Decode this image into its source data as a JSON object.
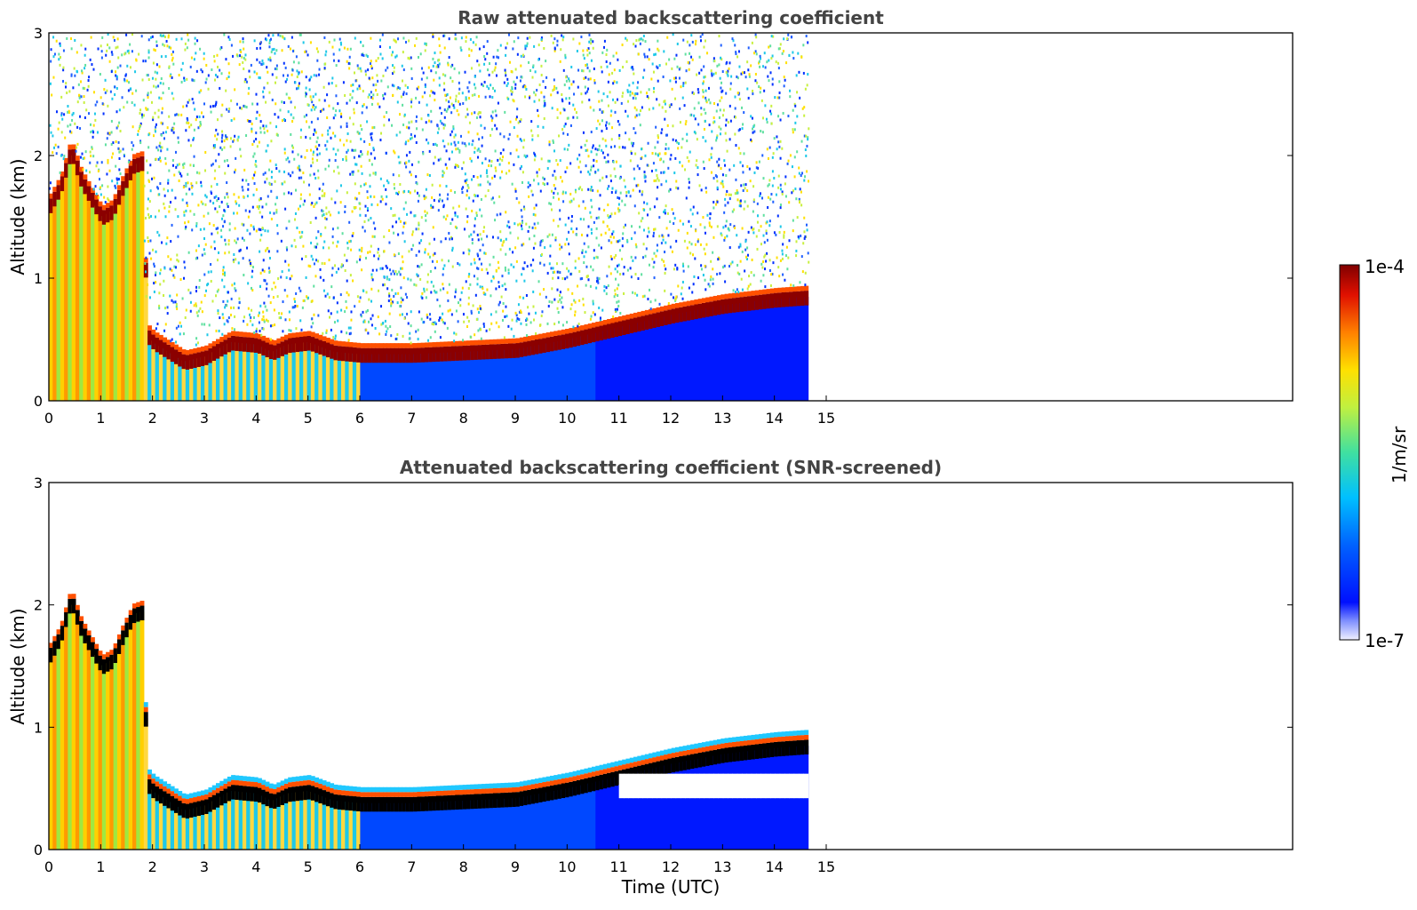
{
  "chart_data": [
    {
      "type": "heatmap",
      "title": "Raw attenuated backscattering coefficient",
      "xlabel": "",
      "ylabel": "Altitude (km)",
      "xlim": [
        0,
        24
      ],
      "ylim": [
        0,
        3
      ],
      "x_ticks": [
        "0",
        "1",
        "2",
        "3",
        "4",
        "5",
        "6",
        "7",
        "8",
        "9",
        "10",
        "11",
        "12",
        "13",
        "14",
        "15"
      ],
      "y_ticks": [
        "0",
        "1",
        "2",
        "3"
      ],
      "data_end_time": 14.65,
      "grid": false,
      "layer_top": [
        [
          0.0,
          1.6
        ],
        [
          0.2,
          1.75
        ],
        [
          0.4,
          2.05
        ],
        [
          0.6,
          1.8
        ],
        [
          0.8,
          1.65
        ],
        [
          1.0,
          1.5
        ],
        [
          1.2,
          1.55
        ],
        [
          1.4,
          1.75
        ],
        [
          1.6,
          1.92
        ],
        [
          1.8,
          1.95
        ],
        [
          1.85,
          0.55
        ],
        [
          2.0,
          0.48
        ],
        [
          2.3,
          0.4
        ],
        [
          2.6,
          0.32
        ],
        [
          3.0,
          0.36
        ],
        [
          3.5,
          0.48
        ],
        [
          4.0,
          0.46
        ],
        [
          4.3,
          0.4
        ],
        [
          4.6,
          0.46
        ],
        [
          5.0,
          0.48
        ],
        [
          5.5,
          0.4
        ],
        [
          6.0,
          0.38
        ],
        [
          7.0,
          0.38
        ],
        [
          8.0,
          0.4
        ],
        [
          9.0,
          0.42
        ],
        [
          10.0,
          0.5
        ],
        [
          11.0,
          0.6
        ],
        [
          12.0,
          0.7
        ],
        [
          13.0,
          0.78
        ],
        [
          14.0,
          0.83
        ],
        [
          14.65,
          0.85
        ]
      ],
      "colorbar": {
        "min_label": "1e-7",
        "max_label": "1e-4",
        "label": "1/m/sr",
        "scale": "log"
      }
    },
    {
      "type": "heatmap",
      "title": "Attenuated backscattering coefficient (SNR-screened)",
      "xlabel": "Time (UTC)",
      "ylabel": "Altitude (km)",
      "xlim": [
        0,
        24
      ],
      "ylim": [
        0,
        3
      ],
      "x_ticks": [
        "0",
        "1",
        "2",
        "3",
        "4",
        "5",
        "6",
        "7",
        "8",
        "9",
        "10",
        "11",
        "12",
        "13",
        "14",
        "15"
      ],
      "y_ticks": [
        "0",
        "1",
        "2",
        "3"
      ],
      "data_end_time": 14.65,
      "grid": false
    }
  ],
  "colorbar": {
    "min_label": "1e-7",
    "max_label": "1e-4",
    "label": "1/m/sr"
  },
  "colors": {
    "layer_core": "#8b0000",
    "screened_core": "#000000",
    "below_layer": "#0018ff",
    "aerosol_warm": "#ffb000",
    "aerosol_cyan": "#1ec8e8"
  }
}
